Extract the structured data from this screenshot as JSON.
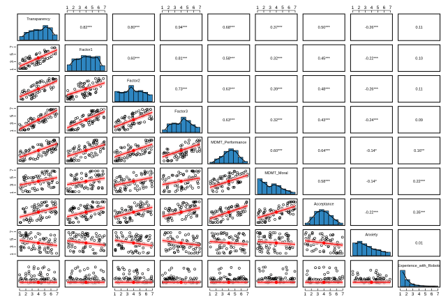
{
  "chart_data": {
    "type": "scatter",
    "title": "",
    "variables": [
      "Transparency",
      "Factor1",
      "Factor2",
      "Factor3",
      "MDMT_Performance",
      "MDMT_Moral",
      "Acceptance",
      "Anxiety",
      "Experience_with_Robots"
    ],
    "axis_ticks": [
      "1",
      "2",
      "3",
      "4",
      "5",
      "6",
      "7"
    ],
    "correlations": [
      {
        "row": 0,
        "col": 1,
        "label": "0.82***"
      },
      {
        "row": 0,
        "col": 2,
        "label": "0.80***"
      },
      {
        "row": 0,
        "col": 3,
        "label": "0.94***"
      },
      {
        "row": 0,
        "col": 4,
        "label": "0.68***"
      },
      {
        "row": 0,
        "col": 5,
        "label": "0.37***"
      },
      {
        "row": 0,
        "col": 6,
        "label": "0.50***"
      },
      {
        "row": 0,
        "col": 7,
        "label": "-0.26***"
      },
      {
        "row": 0,
        "col": 8,
        "label": "0.11"
      },
      {
        "row": 1,
        "col": 2,
        "label": "0.60***"
      },
      {
        "row": 1,
        "col": 3,
        "label": "0.81***"
      },
      {
        "row": 1,
        "col": 4,
        "label": "0.58***"
      },
      {
        "row": 1,
        "col": 5,
        "label": "0.32***"
      },
      {
        "row": 1,
        "col": 6,
        "label": "0.45***"
      },
      {
        "row": 1,
        "col": 7,
        "label": "-0.22***"
      },
      {
        "row": 1,
        "col": 8,
        "label": "0.10"
      },
      {
        "row": 2,
        "col": 3,
        "label": "0.73***"
      },
      {
        "row": 2,
        "col": 4,
        "label": "0.63***"
      },
      {
        "row": 2,
        "col": 5,
        "label": "0.39***"
      },
      {
        "row": 2,
        "col": 6,
        "label": "0.48***"
      },
      {
        "row": 2,
        "col": 7,
        "label": "-0.26***"
      },
      {
        "row": 2,
        "col": 8,
        "label": "0.11"
      },
      {
        "row": 3,
        "col": 4,
        "label": "0.63***"
      },
      {
        "row": 3,
        "col": 5,
        "label": "0.32***"
      },
      {
        "row": 3,
        "col": 6,
        "label": "0.43***"
      },
      {
        "row": 3,
        "col": 7,
        "label": "-0.24***"
      },
      {
        "row": 3,
        "col": 8,
        "label": "0.09"
      },
      {
        "row": 4,
        "col": 5,
        "label": "0.60***"
      },
      {
        "row": 4,
        "col": 6,
        "label": "0.64***"
      },
      {
        "row": 4,
        "col": 7,
        "label": "-0.14*"
      },
      {
        "row": 4,
        "col": 8,
        "label": "0.16**"
      },
      {
        "row": 5,
        "col": 6,
        "label": "0.58***"
      },
      {
        "row": 5,
        "col": 7,
        "label": "-0.14*"
      },
      {
        "row": 5,
        "col": 8,
        "label": "0.22***"
      },
      {
        "row": 6,
        "col": 7,
        "label": "-0.22***"
      },
      {
        "row": 6,
        "col": 8,
        "label": "0.35***"
      },
      {
        "row": 7,
        "col": 8,
        "label": "0.01"
      }
    ],
    "histograms": [
      [
        0.2,
        0.45,
        0.55,
        0.62,
        0.6,
        0.85,
        0.72,
        0.3
      ],
      [
        0.35,
        0.7,
        0.72,
        0.9,
        0.88,
        0.82,
        0.85,
        0.3
      ],
      [
        0.6,
        0.55,
        0.6,
        0.95,
        0.62,
        0.65,
        0.55,
        0.4
      ],
      [
        0.15,
        0.5,
        0.55,
        0.52,
        0.9,
        0.7,
        0.45,
        0.3
      ],
      [
        0.05,
        0.25,
        0.4,
        0.7,
        0.85,
        0.75,
        0.35,
        0.1
      ],
      [
        0.9,
        0.7,
        0.45,
        0.6,
        0.5,
        0.3,
        0.2,
        0.1
      ],
      [
        0.1,
        0.45,
        0.8,
        0.9,
        0.82,
        0.55,
        0.3,
        0.1
      ],
      [
        0.75,
        0.85,
        0.7,
        0.55,
        0.4,
        0.35,
        0.25,
        0.2
      ],
      [
        0.95,
        0.4,
        0.15,
        0.08,
        0.05,
        0.03,
        0.02,
        0.02
      ]
    ],
    "colors": {
      "hist_fill": "#2E86C1",
      "loess_line": "#FF0000",
      "loess_band": "#F4A6A6",
      "points": "#000000"
    },
    "grid": false,
    "legend": "none"
  }
}
